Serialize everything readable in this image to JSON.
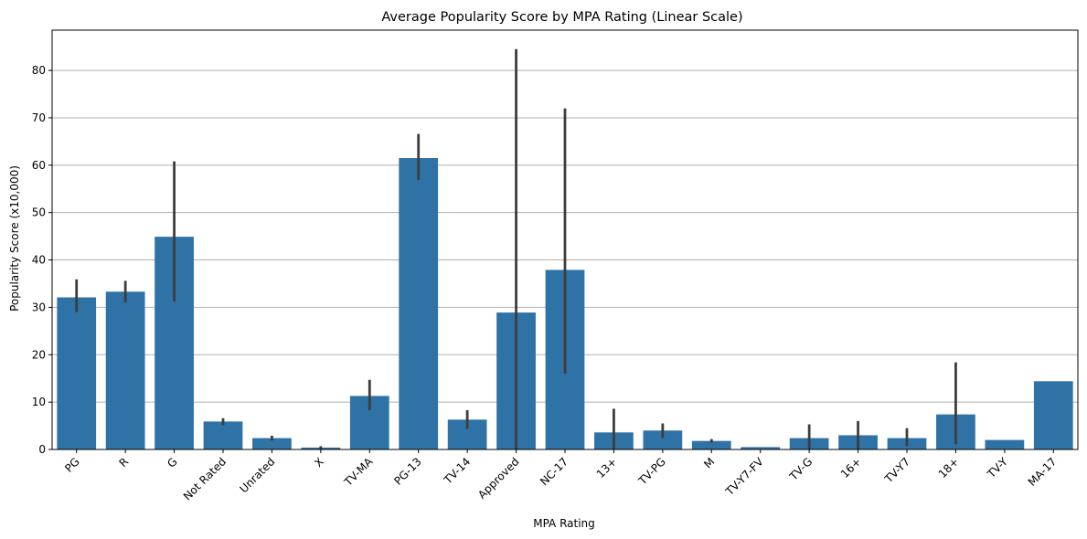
{
  "chart_data": {
    "type": "bar",
    "title": "Average Popularity Score by MPA Rating (Linear Scale)",
    "xlabel": "MPA Rating",
    "ylabel": "Popularity Score (x10,000)",
    "ylim": [
      0,
      88.5
    ],
    "yticks": [
      0,
      10,
      20,
      30,
      40,
      50,
      60,
      70,
      80
    ],
    "grid": "y",
    "bar_color": "#2f72a6",
    "errorbar_color": "#3d3d3d",
    "categories": [
      "PG",
      "R",
      "G",
      "Not Rated",
      "Unrated",
      "X",
      "TV-MA",
      "PG-13",
      "TV-14",
      "Approved",
      "NC-17",
      "13+",
      "TV-PG",
      "M",
      "TV-Y7-FV",
      "TV-G",
      "16+",
      "TV-Y7",
      "18+",
      "TV-Y",
      "MA-17"
    ],
    "values": [
      32.1,
      33.3,
      44.9,
      5.9,
      2.4,
      0.4,
      11.3,
      61.5,
      6.3,
      28.9,
      37.9,
      3.6,
      4.0,
      1.8,
      0.5,
      2.4,
      3.0,
      2.4,
      7.4,
      2.0,
      14.4
    ],
    "error_low": [
      29.0,
      31.0,
      31.2,
      5.1,
      1.9,
      0.1,
      8.3,
      56.9,
      4.4,
      0.0,
      16.0,
      0.0,
      2.4,
      1.4,
      null,
      0.0,
      0.0,
      0.7,
      1.1,
      null,
      null
    ],
    "error_high": [
      35.9,
      35.6,
      60.8,
      6.6,
      2.9,
      0.7,
      14.7,
      66.6,
      8.3,
      84.5,
      72.0,
      8.6,
      5.5,
      2.2,
      null,
      5.3,
      6.0,
      4.5,
      18.4,
      null,
      null
    ]
  }
}
